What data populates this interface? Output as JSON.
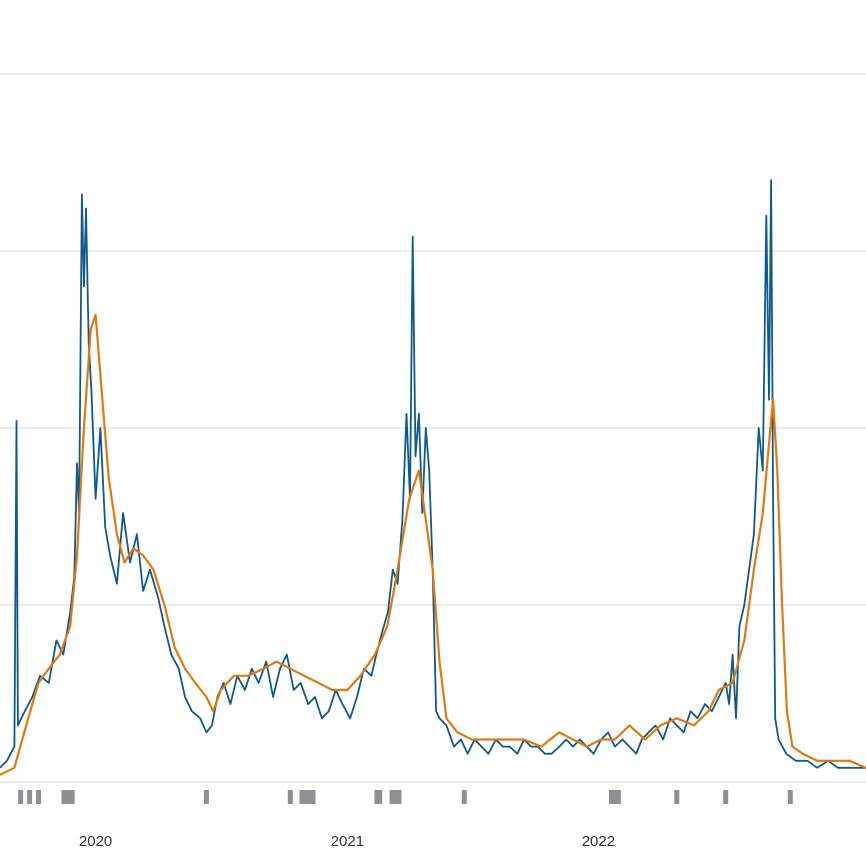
{
  "colors": {
    "raw": "#0f5a8c",
    "smooth": "#e07a10",
    "rug": "#8f8f96",
    "grid": "#e6e6e6"
  },
  "chart_data": {
    "type": "line",
    "title": "",
    "xlabel": "",
    "ylabel": "",
    "xlim": [
      "2019-08-15",
      "2023-01-25"
    ],
    "ylim": [
      0,
      100
    ],
    "grid": true,
    "gridlines_y": [
      0,
      25,
      50,
      75,
      100
    ],
    "x_tick_labels": [
      {
        "label": "2020",
        "date": "2020-01-01"
      },
      {
        "label": "2021",
        "date": "2021-01-01"
      },
      {
        "label": "2022",
        "date": "2022-01-01"
      }
    ],
    "series": [
      {
        "role": "raw",
        "color": "#0f5a8c",
        "points": [
          [
            "2019-08-15",
            2
          ],
          [
            "2019-08-25",
            3
          ],
          [
            "2019-09-05",
            5
          ],
          [
            "2019-09-08",
            51
          ],
          [
            "2019-09-10",
            8
          ],
          [
            "2019-09-20",
            10
          ],
          [
            "2019-10-01",
            12
          ],
          [
            "2019-10-12",
            15
          ],
          [
            "2019-10-25",
            14
          ],
          [
            "2019-11-05",
            20
          ],
          [
            "2019-11-15",
            18
          ],
          [
            "2019-11-25",
            24
          ],
          [
            "2019-12-01",
            29
          ],
          [
            "2019-12-05",
            45
          ],
          [
            "2019-12-08",
            38
          ],
          [
            "2019-12-12",
            83
          ],
          [
            "2019-12-15",
            70
          ],
          [
            "2019-12-18",
            81
          ],
          [
            "2019-12-22",
            62
          ],
          [
            "2019-12-26",
            55
          ],
          [
            "2020-01-01",
            40
          ],
          [
            "2020-01-08",
            50
          ],
          [
            "2020-01-15",
            36
          ],
          [
            "2020-01-22",
            32
          ],
          [
            "2020-02-01",
            28
          ],
          [
            "2020-02-10",
            38
          ],
          [
            "2020-02-20",
            31
          ],
          [
            "2020-03-01",
            35
          ],
          [
            "2020-03-10",
            27
          ],
          [
            "2020-03-20",
            30
          ],
          [
            "2020-04-01",
            26
          ],
          [
            "2020-04-10",
            22
          ],
          [
            "2020-04-20",
            18
          ],
          [
            "2020-05-01",
            16
          ],
          [
            "2020-05-10",
            12
          ],
          [
            "2020-05-20",
            10
          ],
          [
            "2020-06-01",
            9
          ],
          [
            "2020-06-10",
            7
          ],
          [
            "2020-06-18",
            8
          ],
          [
            "2020-06-26",
            12
          ],
          [
            "2020-07-05",
            14
          ],
          [
            "2020-07-15",
            11
          ],
          [
            "2020-07-25",
            15
          ],
          [
            "2020-08-05",
            13
          ],
          [
            "2020-08-15",
            16
          ],
          [
            "2020-08-25",
            14
          ],
          [
            "2020-09-05",
            17
          ],
          [
            "2020-09-15",
            12
          ],
          [
            "2020-09-25",
            16
          ],
          [
            "2020-10-05",
            18
          ],
          [
            "2020-10-15",
            13
          ],
          [
            "2020-10-25",
            14
          ],
          [
            "2020-11-05",
            11
          ],
          [
            "2020-11-15",
            12
          ],
          [
            "2020-11-25",
            9
          ],
          [
            "2020-12-05",
            10
          ],
          [
            "2020-12-15",
            13
          ],
          [
            "2020-12-25",
            11
          ],
          [
            "2021-01-05",
            9
          ],
          [
            "2021-01-15",
            12
          ],
          [
            "2021-01-25",
            16
          ],
          [
            "2021-02-05",
            15
          ],
          [
            "2021-02-12",
            18
          ],
          [
            "2021-02-20",
            21
          ],
          [
            "2021-03-01",
            24
          ],
          [
            "2021-03-08",
            30
          ],
          [
            "2021-03-15",
            28
          ],
          [
            "2021-03-22",
            37
          ],
          [
            "2021-03-28",
            52
          ],
          [
            "2021-04-02",
            40
          ],
          [
            "2021-04-06",
            77
          ],
          [
            "2021-04-10",
            46
          ],
          [
            "2021-04-15",
            52
          ],
          [
            "2021-04-20",
            38
          ],
          [
            "2021-04-25",
            50
          ],
          [
            "2021-04-30",
            44
          ],
          [
            "2021-05-05",
            30
          ],
          [
            "2021-05-10",
            10
          ],
          [
            "2021-05-15",
            9
          ],
          [
            "2021-05-25",
            8
          ],
          [
            "2021-06-05",
            5
          ],
          [
            "2021-06-15",
            6
          ],
          [
            "2021-06-25",
            4
          ],
          [
            "2021-07-05",
            6
          ],
          [
            "2021-07-15",
            5
          ],
          [
            "2021-07-25",
            4
          ],
          [
            "2021-08-05",
            6
          ],
          [
            "2021-08-15",
            5
          ],
          [
            "2021-08-25",
            5
          ],
          [
            "2021-09-05",
            4
          ],
          [
            "2021-09-15",
            6
          ],
          [
            "2021-09-25",
            5
          ],
          [
            "2021-10-05",
            5
          ],
          [
            "2021-10-15",
            4
          ],
          [
            "2021-10-25",
            4
          ],
          [
            "2021-11-05",
            5
          ],
          [
            "2021-11-15",
            6
          ],
          [
            "2021-11-25",
            5
          ],
          [
            "2021-12-05",
            6
          ],
          [
            "2021-12-15",
            5
          ],
          [
            "2021-12-25",
            4
          ],
          [
            "2022-01-05",
            6
          ],
          [
            "2022-01-15",
            7
          ],
          [
            "2022-01-25",
            5
          ],
          [
            "2022-02-05",
            6
          ],
          [
            "2022-02-15",
            5
          ],
          [
            "2022-02-25",
            4
          ],
          [
            "2022-03-05",
            6
          ],
          [
            "2022-03-15",
            7
          ],
          [
            "2022-03-25",
            8
          ],
          [
            "2022-04-05",
            6
          ],
          [
            "2022-04-15",
            9
          ],
          [
            "2022-04-25",
            8
          ],
          [
            "2022-05-05",
            7
          ],
          [
            "2022-05-15",
            10
          ],
          [
            "2022-05-25",
            9
          ],
          [
            "2022-06-05",
            11
          ],
          [
            "2022-06-15",
            10
          ],
          [
            "2022-06-25",
            12
          ],
          [
            "2022-07-05",
            14
          ],
          [
            "2022-07-10",
            11
          ],
          [
            "2022-07-15",
            18
          ],
          [
            "2022-07-20",
            9
          ],
          [
            "2022-07-25",
            22
          ],
          [
            "2022-08-01",
            25
          ],
          [
            "2022-08-08",
            30
          ],
          [
            "2022-08-15",
            35
          ],
          [
            "2022-08-22",
            50
          ],
          [
            "2022-08-28",
            44
          ],
          [
            "2022-09-02",
            80
          ],
          [
            "2022-09-06",
            54
          ],
          [
            "2022-09-09",
            85
          ],
          [
            "2022-09-12",
            40
          ],
          [
            "2022-09-15",
            9
          ],
          [
            "2022-09-20",
            6
          ],
          [
            "2022-10-01",
            4
          ],
          [
            "2022-10-15",
            3
          ],
          [
            "2022-11-01",
            3
          ],
          [
            "2022-11-15",
            2
          ],
          [
            "2022-12-01",
            3
          ],
          [
            "2022-12-15",
            2
          ],
          [
            "2023-01-01",
            2
          ],
          [
            "2023-01-25",
            2
          ]
        ]
      },
      {
        "role": "smoothed",
        "color": "#e07a10",
        "points": [
          [
            "2019-08-15",
            1
          ],
          [
            "2019-09-05",
            2
          ],
          [
            "2019-09-25",
            9
          ],
          [
            "2019-10-10",
            14
          ],
          [
            "2019-10-25",
            16
          ],
          [
            "2019-11-10",
            18
          ],
          [
            "2019-11-25",
            22
          ],
          [
            "2019-12-05",
            32
          ],
          [
            "2019-12-15",
            50
          ],
          [
            "2019-12-25",
            64
          ],
          [
            "2020-01-01",
            66
          ],
          [
            "2020-01-10",
            55
          ],
          [
            "2020-01-20",
            43
          ],
          [
            "2020-02-01",
            35
          ],
          [
            "2020-02-12",
            31
          ],
          [
            "2020-02-25",
            33
          ],
          [
            "2020-03-10",
            32
          ],
          [
            "2020-03-25",
            30
          ],
          [
            "2020-04-10",
            25
          ],
          [
            "2020-04-25",
            19
          ],
          [
            "2020-05-10",
            16
          ],
          [
            "2020-05-25",
            14
          ],
          [
            "2020-06-10",
            12
          ],
          [
            "2020-06-20",
            10
          ],
          [
            "2020-07-01",
            13
          ],
          [
            "2020-07-20",
            15
          ],
          [
            "2020-08-10",
            15
          ],
          [
            "2020-09-01",
            16
          ],
          [
            "2020-09-20",
            17
          ],
          [
            "2020-10-10",
            16
          ],
          [
            "2020-10-30",
            15
          ],
          [
            "2020-11-20",
            14
          ],
          [
            "2020-12-10",
            13
          ],
          [
            "2021-01-01",
            13
          ],
          [
            "2021-01-20",
            15
          ],
          [
            "2021-02-10",
            18
          ],
          [
            "2021-02-28",
            22
          ],
          [
            "2021-03-15",
            30
          ],
          [
            "2021-04-01",
            40
          ],
          [
            "2021-04-15",
            44
          ],
          [
            "2021-04-25",
            37
          ],
          [
            "2021-05-05",
            30
          ],
          [
            "2021-05-15",
            17
          ],
          [
            "2021-05-25",
            9
          ],
          [
            "2021-06-10",
            7
          ],
          [
            "2021-07-01",
            6
          ],
          [
            "2021-07-25",
            6
          ],
          [
            "2021-08-20",
            6
          ],
          [
            "2021-09-15",
            6
          ],
          [
            "2021-10-10",
            5
          ],
          [
            "2021-11-05",
            7
          ],
          [
            "2021-11-25",
            6
          ],
          [
            "2021-12-15",
            5
          ],
          [
            "2022-01-05",
            6
          ],
          [
            "2022-01-25",
            6
          ],
          [
            "2022-02-15",
            8
          ],
          [
            "2022-03-10",
            6
          ],
          [
            "2022-04-01",
            8
          ],
          [
            "2022-04-25",
            9
          ],
          [
            "2022-05-20",
            8
          ],
          [
            "2022-06-10",
            10
          ],
          [
            "2022-06-25",
            13
          ],
          [
            "2022-07-15",
            14
          ],
          [
            "2022-08-01",
            20
          ],
          [
            "2022-08-15",
            30
          ],
          [
            "2022-08-28",
            38
          ],
          [
            "2022-09-08",
            50
          ],
          [
            "2022-09-12",
            54
          ],
          [
            "2022-09-18",
            44
          ],
          [
            "2022-09-25",
            25
          ],
          [
            "2022-10-02",
            10
          ],
          [
            "2022-10-10",
            5
          ],
          [
            "2022-10-25",
            4
          ],
          [
            "2022-11-15",
            3
          ],
          [
            "2022-12-10",
            3
          ],
          [
            "2023-01-01",
            3
          ],
          [
            "2023-01-25",
            2
          ]
        ]
      }
    ],
    "rug_dates": [
      "2019-09-14",
      "2019-09-27",
      "2019-10-10",
      "2019-11-16",
      "2019-11-18",
      "2019-11-20",
      "2019-11-22",
      "2019-11-24",
      "2019-11-26",
      "2019-11-28",
      "2020-06-10",
      "2020-10-10",
      "2020-10-27",
      "2020-10-29",
      "2020-11-01",
      "2020-11-03",
      "2020-11-05",
      "2020-11-12",
      "2021-02-13",
      "2021-02-17",
      "2021-03-07",
      "2021-03-09",
      "2021-03-11",
      "2021-03-13",
      "2021-03-15",
      "2021-03-17",
      "2021-06-20",
      "2022-01-20",
      "2022-01-22",
      "2022-01-24",
      "2022-01-26",
      "2022-01-28",
      "2022-01-30",
      "2022-04-25",
      "2022-07-05",
      "2022-10-07"
    ]
  }
}
